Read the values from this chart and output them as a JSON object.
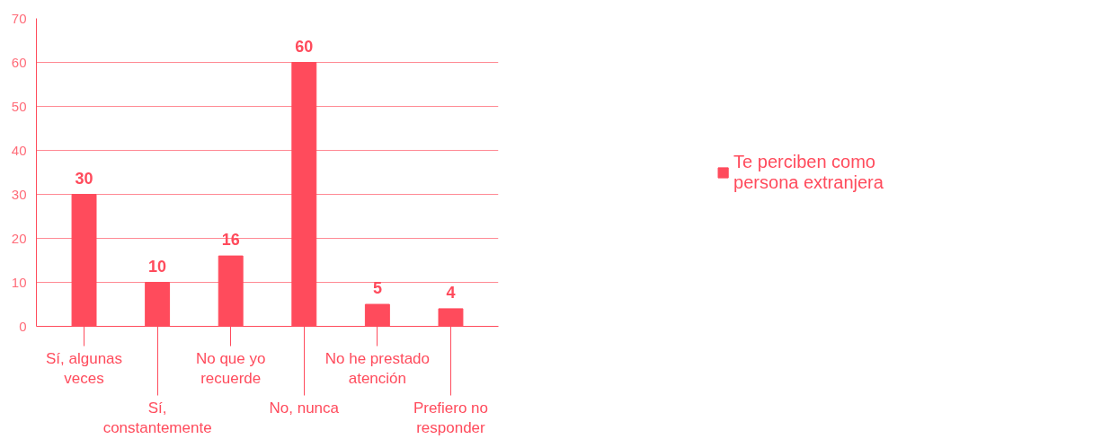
{
  "chart_data": {
    "type": "bar",
    "categories": [
      "Sí, algunas veces",
      "Sí, constantemente",
      "No que yo recuerde",
      "No, nunca",
      "No he prestado atención",
      "Prefiero no responder"
    ],
    "series": [
      {
        "name": "Te perciben como persona extranjera",
        "color": "#ff4b5c",
        "values": [
          30,
          10,
          16,
          60,
          5,
          4
        ]
      }
    ],
    "ylim": [
      0,
      70
    ],
    "yticks": [
      0,
      10,
      20,
      30,
      40,
      50,
      60,
      70
    ],
    "grid": "y",
    "legend": "right",
    "data_labels": true
  }
}
